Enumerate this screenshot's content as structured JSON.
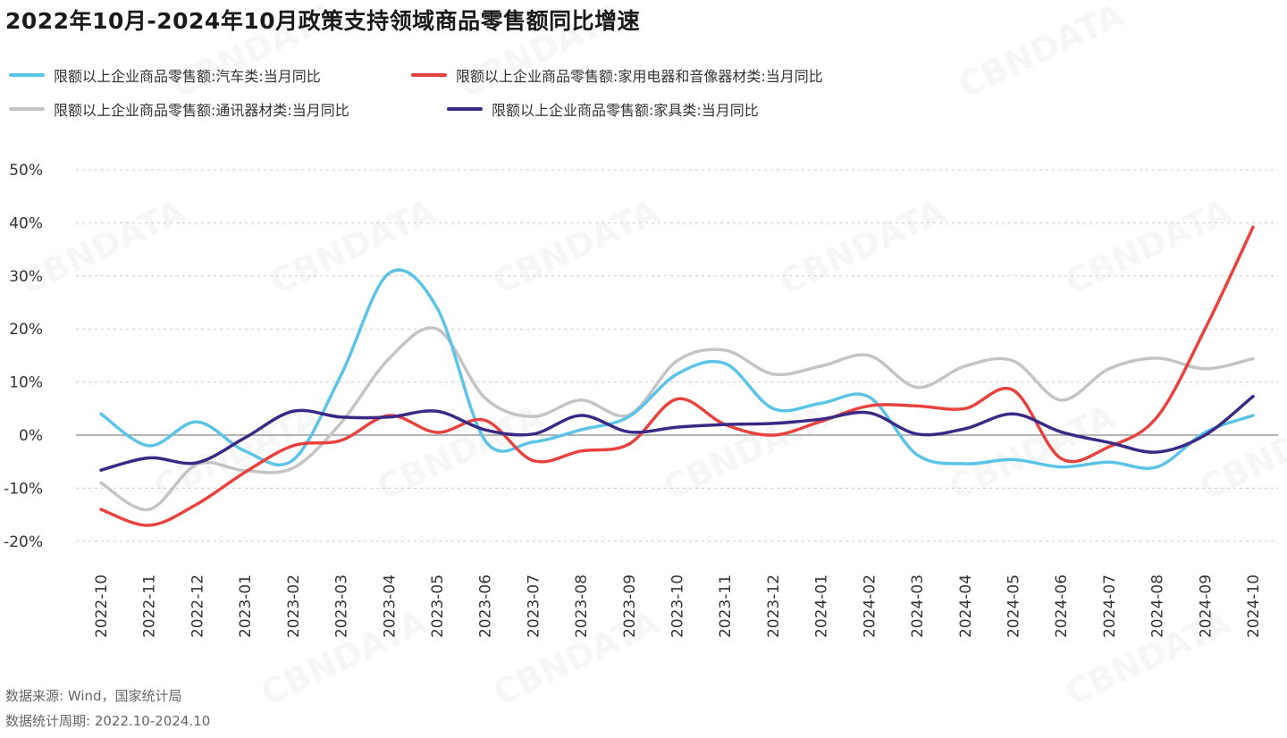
{
  "chart_data": {
    "type": "line",
    "title": "2022年10月-2024年10月政策支持领域商品零售额同比增速",
    "xlabel": "",
    "ylabel": "",
    "ylim": [
      -20,
      50
    ],
    "yticks": [
      "-20%",
      "-10%",
      "0%",
      "10%",
      "20%",
      "30%",
      "40%",
      "50%"
    ],
    "ytick_values": [
      -20,
      -10,
      0,
      10,
      20,
      30,
      40,
      50
    ],
    "grid": true,
    "legend_position": "top-left",
    "x": [
      "2022-10",
      "2022-11",
      "2022-12",
      "2023-01",
      "2023-02",
      "2023-03",
      "2023-04",
      "2023-05",
      "2023-06",
      "2023-07",
      "2023-08",
      "2023-09",
      "2023-10",
      "2023-11",
      "2023-12",
      "2024-01",
      "2024-02",
      "2024-03",
      "2024-04",
      "2024-05",
      "2024-06",
      "2024-07",
      "2024-08",
      "2024-09",
      "2024-10"
    ],
    "series": [
      {
        "name": "限额以上企业商品零售额:汽车类:当月同比",
        "color": "#5bc4e6",
        "values": [
          4.0,
          -2.0,
          2.5,
          -3.0,
          -4.7,
          11.3,
          30.5,
          24.0,
          -1.0,
          -1.3,
          1.0,
          3.5,
          11.5,
          13.5,
          5.0,
          6.0,
          7.2,
          -3.7,
          -5.4,
          -4.6,
          -6.0,
          -5.1,
          -6.0,
          0.5,
          3.7
        ]
      },
      {
        "name": "限额以上企业商品零售额:家用电器和音像器材类:当月同比",
        "color": "#e8423f",
        "values": [
          -14.0,
          -17.0,
          -13.0,
          -7.0,
          -2.0,
          -1.0,
          3.7,
          0.5,
          2.8,
          -4.8,
          -3.0,
          -1.7,
          6.8,
          2.0,
          0.0,
          2.6,
          5.5,
          5.5,
          5.0,
          8.5,
          -4.4,
          -2.2,
          3.4,
          20.0,
          39.2
        ]
      },
      {
        "name": "限额以上企业商品零售额:通讯器材类:当月同比",
        "color": "#c4c4c4",
        "values": [
          -9.0,
          -14.0,
          -5.5,
          -6.7,
          -6.2,
          2.3,
          14.4,
          20.0,
          7.0,
          3.5,
          6.6,
          3.8,
          14.0,
          16.0,
          11.5,
          13.0,
          15.0,
          9.0,
          13.0,
          14.0,
          6.6,
          12.5,
          14.5,
          12.5,
          14.4
        ]
      },
      {
        "name": "限额以上企业商品零售额:家具类:当月同比",
        "color": "#3a2a86",
        "values": [
          -6.6,
          -4.3,
          -5.2,
          -0.5,
          4.5,
          3.4,
          3.4,
          4.5,
          1.0,
          0.2,
          3.7,
          0.6,
          1.5,
          2.0,
          2.2,
          3.0,
          4.2,
          0.2,
          1.2,
          4.0,
          0.6,
          -1.4,
          -3.2,
          0.0,
          7.3
        ]
      }
    ]
  },
  "notes": {
    "source": "数据来源: Wind，国家统计局",
    "period": "数据统计周期: 2022.10-2024.10"
  },
  "watermark": "CBNDATA"
}
